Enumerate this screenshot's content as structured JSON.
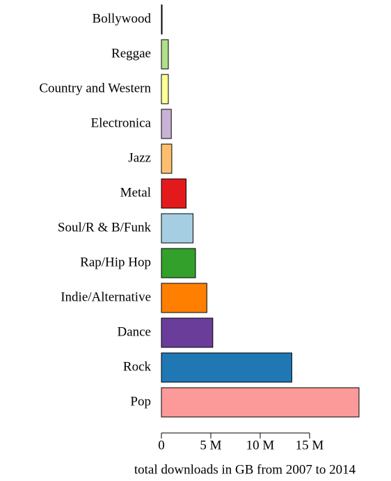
{
  "chart_data": {
    "type": "barh",
    "x_label": "total downloads in GB  from 2007 to 2014",
    "categories": [
      "Bollywood",
      "Reggae",
      "Country and Western",
      "Electronica",
      "Jazz",
      "Metal",
      "Soul/R & B/Funk",
      "Rap/Hip Hop",
      "Indie/Alternative",
      "Dance",
      "Rock",
      "Pop"
    ],
    "values": [
      0.07,
      0.7,
      0.7,
      1.0,
      1.05,
      2.5,
      3.2,
      3.45,
      4.6,
      5.2,
      13.2,
      20.0
    ],
    "colors": [
      "#b15928",
      "#b2df8a",
      "#ffff99",
      "#cab2d6",
      "#fdbf6f",
      "#e31a1c",
      "#a6cee3",
      "#33a02c",
      "#ff7f00",
      "#6a3d9a",
      "#1f78b4",
      "#fb9a99"
    ],
    "xlim": [
      0,
      20
    ],
    "xticks": [
      0,
      {
        "value": 5,
        "label": "5 M"
      },
      {
        "value": 10,
        "label": "10 M"
      },
      {
        "value": 15,
        "label": "15 M"
      }
    ],
    "grid": false
  }
}
